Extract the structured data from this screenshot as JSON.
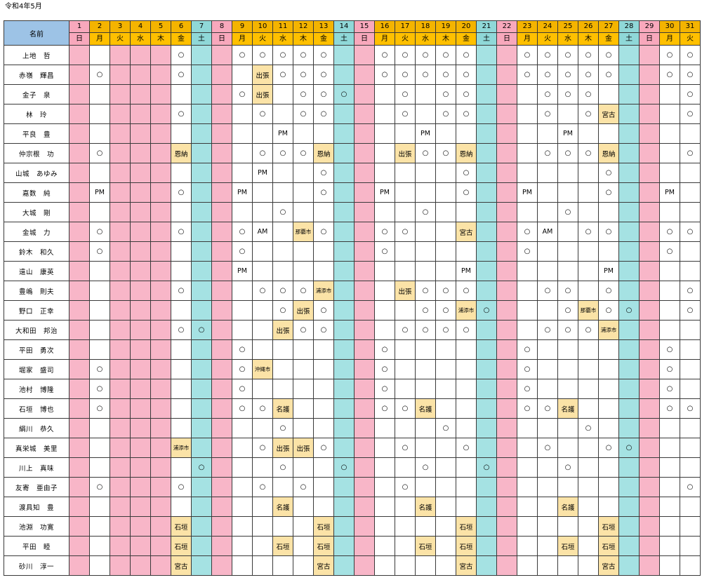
{
  "title": "令和4年5月",
  "name_header": "名前",
  "days": [
    {
      "d": "1",
      "w": "日",
      "t": "sun"
    },
    {
      "d": "2",
      "w": "月",
      "t": "wk"
    },
    {
      "d": "3",
      "w": "火",
      "t": "hol"
    },
    {
      "d": "4",
      "w": "水",
      "t": "hol"
    },
    {
      "d": "5",
      "w": "木",
      "t": "hol"
    },
    {
      "d": "6",
      "w": "金",
      "t": "wk"
    },
    {
      "d": "7",
      "w": "土",
      "t": "sat"
    },
    {
      "d": "8",
      "w": "日",
      "t": "sun"
    },
    {
      "d": "9",
      "w": "月",
      "t": "wk"
    },
    {
      "d": "10",
      "w": "火",
      "t": "wk"
    },
    {
      "d": "11",
      "w": "水",
      "t": "wk"
    },
    {
      "d": "12",
      "w": "木",
      "t": "wk"
    },
    {
      "d": "13",
      "w": "金",
      "t": "wk"
    },
    {
      "d": "14",
      "w": "土",
      "t": "sat"
    },
    {
      "d": "15",
      "w": "日",
      "t": "sun"
    },
    {
      "d": "16",
      "w": "月",
      "t": "wk"
    },
    {
      "d": "17",
      "w": "火",
      "t": "wk"
    },
    {
      "d": "18",
      "w": "水",
      "t": "wk"
    },
    {
      "d": "19",
      "w": "木",
      "t": "wk"
    },
    {
      "d": "20",
      "w": "金",
      "t": "wk"
    },
    {
      "d": "21",
      "w": "土",
      "t": "sat"
    },
    {
      "d": "22",
      "w": "日",
      "t": "sun"
    },
    {
      "d": "23",
      "w": "月",
      "t": "wk"
    },
    {
      "d": "24",
      "w": "火",
      "t": "wk"
    },
    {
      "d": "25",
      "w": "水",
      "t": "wk"
    },
    {
      "d": "26",
      "w": "木",
      "t": "wk"
    },
    {
      "d": "27",
      "w": "金",
      "t": "wk"
    },
    {
      "d": "28",
      "w": "土",
      "t": "sat"
    },
    {
      "d": "29",
      "w": "日",
      "t": "sun"
    },
    {
      "d": "30",
      "w": "月",
      "t": "wk"
    },
    {
      "d": "31",
      "w": "火",
      "t": "wk"
    }
  ],
  "rows": [
    {
      "name": "上地　哲",
      "cells": {
        "6": "○",
        "9": "○",
        "10": "○",
        "11": "○",
        "12": "○",
        "13": "○",
        "16": "○",
        "17": "○",
        "18": "○",
        "19": "○",
        "20": "○",
        "23": "○",
        "24": "○",
        "25": "○",
        "26": "○",
        "27": "○",
        "30": "○",
        "31": "○"
      }
    },
    {
      "name": "赤嶺　輝昌",
      "cells": {
        "2": "○",
        "6": "○",
        "10": "出張",
        "11": "○",
        "12": "○",
        "13": "○",
        "16": "○",
        "17": "○",
        "18": "○",
        "19": "○",
        "20": "○",
        "23": "○",
        "24": "○",
        "25": "○",
        "26": "○",
        "27": "○",
        "30": "○",
        "31": "○"
      }
    },
    {
      "name": "金子　泉",
      "cells": {
        "9": "○",
        "10": "出張",
        "12": "○",
        "13": "○",
        "14": "○",
        "17": "○",
        "19": "○",
        "20": "○",
        "24": "○",
        "25": "○",
        "26": "○",
        "31": "○"
      }
    },
    {
      "name": "林　玲",
      "cells": {
        "6": "○",
        "10": "○",
        "12": "○",
        "13": "○",
        "17": "○",
        "19": "○",
        "20": "○",
        "24": "○",
        "26": "○",
        "27": "宮古",
        "31": "○"
      }
    },
    {
      "name": "平良　豊",
      "cells": {
        "11": "PM",
        "18": "PM",
        "25": "PM"
      }
    },
    {
      "name": "仲宗根　功",
      "cells": {
        "2": "○",
        "6": "恩納",
        "10": "○",
        "11": "○",
        "12": "○",
        "13": "恩納",
        "17": "出張",
        "18": "○",
        "19": "○",
        "20": "恩納",
        "24": "○",
        "25": "○",
        "26": "○",
        "27": "恩納",
        "31": "○"
      }
    },
    {
      "name": "山城　あゆみ",
      "cells": {
        "10": "PM",
        "13": "○",
        "20": "○",
        "27": "○"
      }
    },
    {
      "name": "嘉数　純",
      "cells": {
        "2": "PM",
        "6": "○",
        "9": "PM",
        "13": "○",
        "16": "PM",
        "20": "○",
        "23": "PM",
        "27": "○",
        "30": "PM"
      }
    },
    {
      "name": "大城　剛",
      "cells": {
        "11": "○",
        "18": "○",
        "25": "○"
      }
    },
    {
      "name": "金城　力",
      "cells": {
        "2": "○",
        "6": "○",
        "9": "○",
        "10": "AM",
        "12": "那覇市",
        "13": "○",
        "16": "○",
        "17": "○",
        "20": "宮古",
        "23": "○",
        "24": "AM",
        "26": "○",
        "27": "○",
        "30": "○",
        "31": "○"
      }
    },
    {
      "name": "鈴木　和久",
      "cells": {
        "2": "○",
        "9": "○",
        "16": "○",
        "23": "○",
        "30": "○"
      }
    },
    {
      "name": "遠山　康英",
      "cells": {
        "9": "PM",
        "20": "PM",
        "27": "PM"
      }
    },
    {
      "name": "豊嶋　則夫",
      "cells": {
        "6": "○",
        "10": "○",
        "11": "○",
        "12": "○",
        "13": "浦添市",
        "17": "出張",
        "18": "○",
        "19": "○",
        "20": "○",
        "24": "○",
        "25": "○",
        "27": "○",
        "31": "○"
      }
    },
    {
      "name": "野口　正幸",
      "cells": {
        "11": "○",
        "12": "出張",
        "13": "○",
        "18": "○",
        "19": "○",
        "20": "浦添市",
        "21": "○",
        "25": "○",
        "26": "那覇市",
        "27": "○",
        "28": "○",
        "31": "○"
      }
    },
    {
      "name": "大和田　邦治",
      "cells": {
        "6": "○",
        "7": "○",
        "11": "出張",
        "12": "○",
        "13": "○",
        "17": "○",
        "18": "○",
        "19": "○",
        "20": "○",
        "24": "○",
        "25": "○",
        "26": "○",
        "27": "浦添市"
      }
    },
    {
      "name": "平田　勇次",
      "cells": {
        "9": "○",
        "16": "○",
        "23": "○",
        "30": "○"
      }
    },
    {
      "name": "堀家　盛司",
      "cells": {
        "2": "○",
        "9": "○",
        "10": "沖縄市",
        "16": "○",
        "23": "○",
        "30": "○"
      }
    },
    {
      "name": "池村　博隆",
      "cells": {
        "2": "○",
        "9": "○",
        "16": "○",
        "23": "○",
        "30": "○"
      }
    },
    {
      "name": "石垣　博也",
      "cells": {
        "2": "○",
        "9": "○",
        "10": "○",
        "11": "名護",
        "16": "○",
        "17": "○",
        "18": "名護",
        "23": "○",
        "24": "○",
        "25": "名護",
        "30": "○",
        "31": "○"
      }
    },
    {
      "name": "絹川　恭久",
      "cells": {
        "11": "○",
        "19": "○",
        "26": "○"
      }
    },
    {
      "name": "真栄城　美里",
      "cells": {
        "6": "浦添市",
        "10": "○",
        "11": "出張",
        "12": "出張",
        "13": "○",
        "17": "○",
        "20": "○",
        "24": "○",
        "27": "○",
        "28": "○"
      }
    },
    {
      "name": "川上　真味",
      "cells": {
        "7": "○",
        "11": "○",
        "14": "○",
        "18": "○",
        "21": "○",
        "25": "○"
      }
    },
    {
      "name": "友寄　亜由子",
      "cells": {
        "2": "○",
        "6": "○",
        "10": "○",
        "12": "○",
        "17": "○",
        "31": "○"
      }
    },
    {
      "name": "渡具知　豊",
      "cells": {
        "11": "名護",
        "18": "名護",
        "25": "名護"
      }
    },
    {
      "name": "池淵　功寛",
      "cells": {
        "6": "石垣",
        "13": "石垣",
        "20": "石垣",
        "27": "石垣"
      }
    },
    {
      "name": "平田　睦",
      "cells": {
        "6": "石垣",
        "11": "石垣",
        "13": "石垣",
        "18": "石垣",
        "20": "石垣",
        "25": "石垣",
        "27": "石垣"
      }
    },
    {
      "name": "砂川　淳一",
      "cells": {
        "6": "宮古",
        "13": "宮古",
        "20": "宮古",
        "27": "宮古"
      }
    }
  ]
}
